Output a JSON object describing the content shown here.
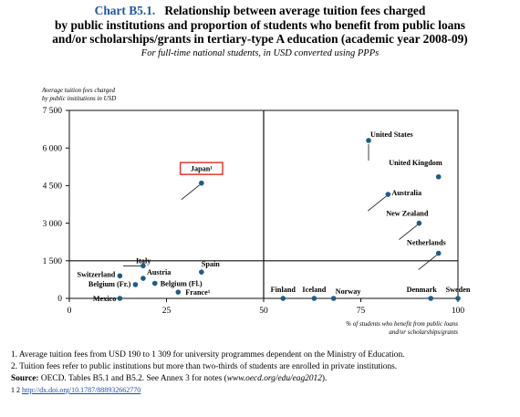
{
  "title": {
    "chart_number": "Chart B5.1.",
    "line1": "Relationship between average tuition fees charged",
    "line2": "by public institutions and proportion of students who benefit from public loans",
    "line3": "and/or scholarships/grants in tertiary-type A education (academic year 2008-09)",
    "subtitle": "For full-time national students, in USD converted using PPPs"
  },
  "chart_data": {
    "type": "scatter",
    "ylabel_lines": [
      "Average tuition fees charged",
      "by public institutions in USD"
    ],
    "xlabel_lines": [
      "% of students who benefit from public loans",
      "and/or scholarships/grants"
    ],
    "xlim": [
      0,
      100
    ],
    "ylim": [
      0,
      7500
    ],
    "x_ticks": [
      0,
      25,
      50,
      75,
      100
    ],
    "x_tick_labels": [
      "0",
      "25",
      "50",
      "75",
      "100"
    ],
    "y_ticks": [
      0,
      1500,
      3000,
      4500,
      6000,
      7500
    ],
    "y_tick_labels": [
      "0",
      "1 500",
      "3 000",
      "4 500",
      "6 000",
      "7 500"
    ],
    "reference_lines": {
      "x": 50,
      "y": 1500
    },
    "marker_color": "#1f5c85",
    "highlight_color": "#e03a2f",
    "points": [
      {
        "label": "United States",
        "x": 77,
        "y": 6300
      },
      {
        "label": "United Kingdom",
        "x": 95,
        "y": 4850
      },
      {
        "label": "Japan¹",
        "x": 34,
        "y": 4600,
        "highlight": true
      },
      {
        "label": "Australia",
        "x": 82,
        "y": 4150
      },
      {
        "label": "New Zealand",
        "x": 90,
        "y": 3000
      },
      {
        "label": "Netherlands",
        "x": 95,
        "y": 1800
      },
      {
        "label": "Italy",
        "x": 19,
        "y": 1300
      },
      {
        "label": "Switzerland",
        "x": 13,
        "y": 900
      },
      {
        "label": "Austria",
        "x": 19,
        "y": 800
      },
      {
        "label": "Spain",
        "x": 34,
        "y": 1050
      },
      {
        "label": "Belgium (Fr.)",
        "x": 17,
        "y": 550
      },
      {
        "label": "Belgium (Fl.)",
        "x": 22,
        "y": 600
      },
      {
        "label": "France¹",
        "x": 28,
        "y": 250
      },
      {
        "label": "Mexico",
        "x": 13,
        "y": 0
      },
      {
        "label": "Finland",
        "x": 55,
        "y": 0
      },
      {
        "label": "Iceland",
        "x": 63,
        "y": 0
      },
      {
        "label": "Norway",
        "x": 68,
        "y": 0
      },
      {
        "label": "Denmark",
        "x": 93,
        "y": 0
      },
      {
        "label": "Sweden",
        "x": 100,
        "y": 0
      }
    ]
  },
  "notes": {
    "note1": "1. Average tuition fees from USD 190 to 1 309 for university programmes dependent on the Ministry of Education.",
    "note2": "2. Tuition fees refer to public institutions but more than two-thirds of students are enrolled in private institutions.",
    "source_label": "Source:",
    "source_text": "OECD. Tables B5.1 and B5.2. See Annex 3 for notes (",
    "source_link": "www.oecd.org/edu/eag2012",
    "source_end": ").",
    "doi_prefix": "1 2",
    "doi_link": "http://dx.doi.org/10.1787/888932662770"
  }
}
